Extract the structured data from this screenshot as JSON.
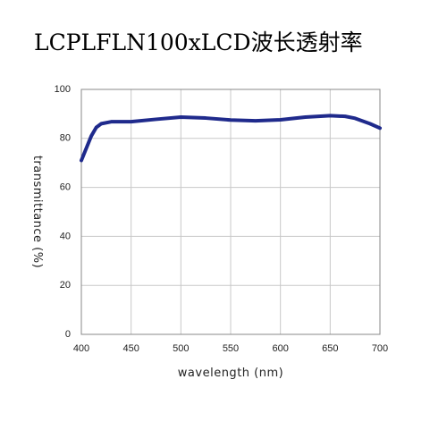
{
  "chart_data": {
    "type": "line",
    "title": "LCPLFLN100xLCD波长透射率",
    "x_label": "wavelength (nm)",
    "y_label": "transmittance (%)",
    "x": [
      400,
      405,
      410,
      415,
      420,
      430,
      450,
      475,
      500,
      525,
      550,
      575,
      600,
      625,
      650,
      665,
      675,
      690,
      700
    ],
    "series": [
      {
        "name": "LCPLFLN100xLCD",
        "color": "#1f2a8c",
        "values": [
          71,
          76,
          81,
          84.5,
          86,
          86.8,
          86.8,
          87.8,
          88.7,
          88.3,
          87.5,
          87.2,
          87.6,
          88.7,
          89.3,
          89,
          88.2,
          86,
          84.2
        ]
      }
    ],
    "xlim": [
      400,
      700
    ],
    "xticks": [
      400,
      450,
      500,
      550,
      600,
      650,
      700
    ],
    "ylim": [
      0,
      100
    ],
    "yticks": [
      0,
      20,
      40,
      60,
      80,
      100
    ],
    "grid": true
  }
}
